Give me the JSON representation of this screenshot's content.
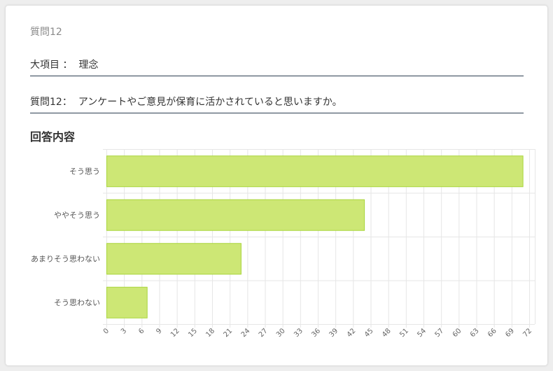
{
  "question_number": "質問12",
  "category": {
    "label": "大項目 ：",
    "value": "理念"
  },
  "question": {
    "label": "質問12：",
    "text": "アンケートやご意見が保育に活かされていると思いますか。"
  },
  "section_title": "回答内容",
  "colors": {
    "bar_fill": "#cde775",
    "bar_border": "#a9d63c",
    "grid": "#e6e6e6",
    "rule": "#2c3e50"
  },
  "chart_data": {
    "type": "bar",
    "orientation": "horizontal",
    "title": "",
    "xlabel": "",
    "ylabel": "",
    "categories": [
      "そう思う",
      "ややそう思う",
      "あまりそう思わない",
      "そう思わない"
    ],
    "values": [
      71,
      44,
      23,
      7
    ],
    "xlim": [
      0,
      72
    ],
    "x_ticks": [
      0,
      3,
      6,
      9,
      12,
      15,
      18,
      21,
      24,
      27,
      30,
      33,
      36,
      39,
      42,
      45,
      48,
      51,
      54,
      57,
      60,
      63,
      66,
      69,
      72
    ],
    "grid": true,
    "legend": "none"
  }
}
